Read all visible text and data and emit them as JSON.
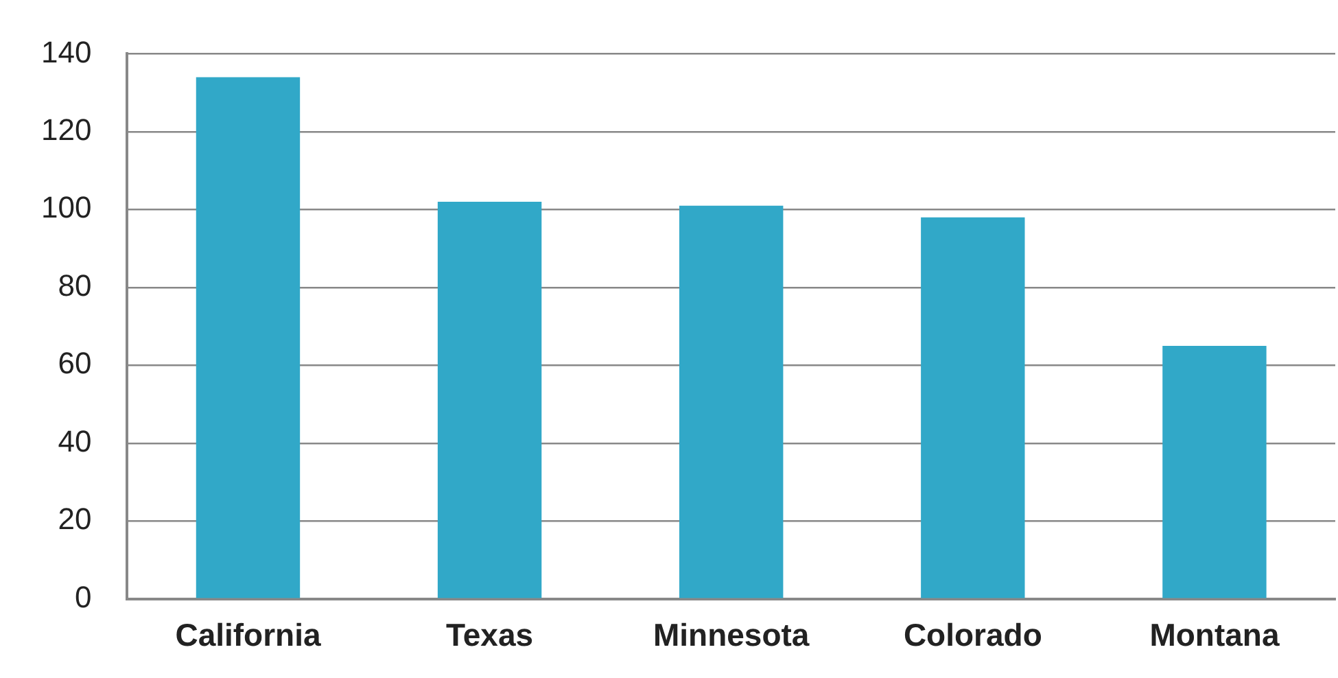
{
  "chart_data": {
    "type": "bar",
    "categories": [
      "California",
      "Texas",
      "Minnesota",
      "Colorado",
      "Montana"
    ],
    "values": [
      134,
      102,
      101,
      98,
      65
    ],
    "color": "#31a8c8",
    "ylim": [
      0,
      140
    ],
    "yticks": [
      0,
      20,
      40,
      60,
      80,
      100,
      120,
      140
    ],
    "grid": "y"
  }
}
